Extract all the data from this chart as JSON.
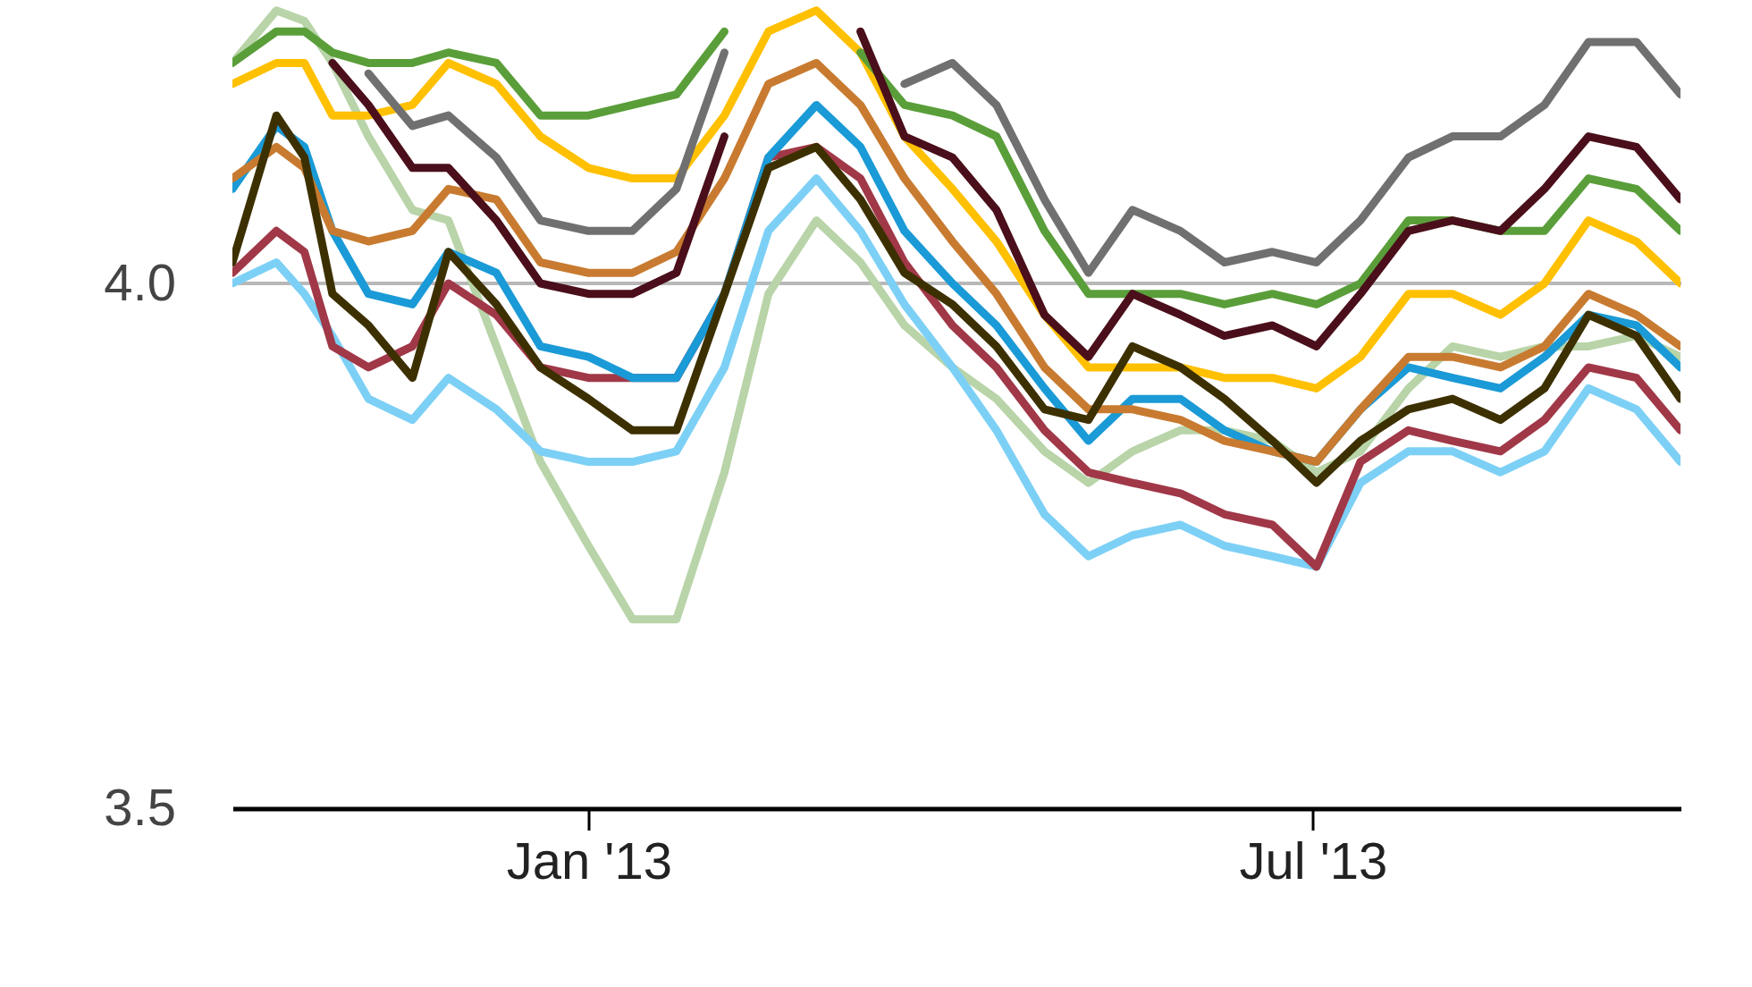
{
  "chart_data": {
    "type": "line",
    "x": [
      "2012-10-04",
      "2012-10-15",
      "2012-10-22",
      "2012-10-29",
      "2012-11-07",
      "2012-11-18",
      "2012-11-27",
      "2012-12-09",
      "2012-12-20",
      "2013-01-01",
      "2013-01-12",
      "2013-01-23",
      "2013-02-04",
      "2013-02-15",
      "2013-02-27",
      "2013-03-10",
      "2013-03-21",
      "2013-04-02",
      "2013-04-13",
      "2013-04-25",
      "2013-05-06",
      "2013-05-17",
      "2013-05-29",
      "2013-06-09",
      "2013-06-21",
      "2013-07-02",
      "2013-07-13",
      "2013-07-25",
      "2013-08-05",
      "2013-08-17",
      "2013-08-28",
      "2013-09-08",
      "2013-09-20",
      "2013-10-01"
    ],
    "series": [
      {
        "color": "#b8d4a8",
        "values": [
          4.21,
          4.26,
          4.25,
          4.21,
          4.14,
          4.07,
          4.06,
          3.94,
          3.83,
          3.75,
          3.68,
          3.68,
          3.82,
          3.99,
          4.06,
          4.02,
          3.96,
          3.92,
          3.89,
          3.84,
          3.81,
          3.84,
          3.86,
          3.86,
          3.85,
          3.82,
          3.84,
          3.9,
          3.94,
          3.93,
          3.94,
          3.94,
          3.95,
          3.93
        ]
      },
      {
        "color": "#7dd0f5",
        "values": [
          4.0,
          4.02,
          3.99,
          3.95,
          3.89,
          3.87,
          3.91,
          3.88,
          3.84,
          3.83,
          3.83,
          3.84,
          3.92,
          4.05,
          4.1,
          4.05,
          3.98,
          3.92,
          3.86,
          3.78,
          3.74,
          3.76,
          3.77,
          3.75,
          3.74,
          3.73,
          3.81,
          3.84,
          3.84,
          3.82,
          3.84,
          3.9,
          3.88,
          3.83
        ]
      },
      {
        "color": "#a03848",
        "values": [
          4.01,
          4.05,
          4.03,
          3.94,
          3.92,
          3.94,
          4.0,
          3.97,
          3.92,
          3.91,
          3.91,
          3.91,
          3.99,
          4.12,
          4.13,
          4.1,
          4.02,
          3.96,
          3.92,
          3.86,
          3.82,
          3.81,
          3.8,
          3.78,
          3.77,
          3.73,
          3.83,
          3.86,
          3.85,
          3.84,
          3.87,
          3.92,
          3.91,
          3.86
        ]
      },
      {
        "color": "#1a9ad6",
        "values": [
          4.09,
          4.15,
          4.13,
          4.05,
          3.99,
          3.98,
          4.03,
          4.01,
          3.94,
          3.93,
          3.91,
          3.91,
          3.99,
          4.12,
          4.17,
          4.13,
          4.05,
          4.0,
          3.96,
          3.9,
          3.85,
          3.89,
          3.89,
          3.86,
          3.84,
          3.83,
          3.88,
          3.92,
          3.91,
          3.9,
          3.93,
          3.97,
          3.96,
          3.92
        ]
      },
      {
        "color": "#c87b30",
        "values": [
          4.1,
          4.13,
          4.11,
          4.05,
          4.04,
          4.05,
          4.09,
          4.08,
          4.02,
          4.01,
          4.01,
          4.03,
          4.1,
          4.19,
          4.21,
          4.17,
          4.1,
          4.04,
          3.99,
          3.92,
          3.88,
          3.88,
          3.87,
          3.85,
          3.84,
          3.83,
          3.88,
          3.93,
          3.93,
          3.92,
          3.94,
          3.99,
          3.97,
          3.94
        ]
      },
      {
        "color": "#ffc000",
        "values": [
          4.19,
          4.21,
          4.21,
          4.16,
          4.16,
          4.17,
          4.21,
          4.19,
          4.14,
          4.11,
          4.1,
          4.1,
          4.16,
          4.24,
          4.26,
          4.22,
          4.14,
          4.09,
          4.04,
          3.97,
          3.92,
          3.92,
          3.92,
          3.91,
          3.91,
          3.9,
          3.93,
          3.99,
          3.99,
          3.97,
          4.0,
          4.06,
          4.04,
          4.0
        ]
      },
      {
        "color": "#5a9e3a",
        "values": [
          4.21,
          4.24,
          4.24,
          4.22,
          4.21,
          4.21,
          4.22,
          4.21,
          4.16,
          4.16,
          4.17,
          4.18,
          4.24,
          null,
          null,
          4.22,
          4.17,
          4.16,
          4.14,
          4.05,
          3.99,
          3.99,
          3.99,
          3.98,
          3.99,
          3.98,
          4.0,
          4.06,
          4.06,
          4.05,
          4.05,
          4.1,
          4.09,
          4.05
        ]
      },
      {
        "color": "#707070",
        "values": [
          null,
          null,
          null,
          null,
          4.2,
          4.15,
          4.16,
          4.12,
          4.06,
          4.05,
          4.05,
          4.09,
          4.22,
          null,
          null,
          null,
          4.19,
          4.21,
          4.17,
          4.08,
          4.01,
          4.07,
          4.05,
          4.02,
          4.03,
          4.02,
          4.06,
          4.12,
          4.14,
          4.14,
          4.17,
          4.23,
          4.23,
          4.18
        ]
      },
      {
        "color": "#4a0f1a",
        "values": [
          null,
          null,
          null,
          4.21,
          4.17,
          4.11,
          4.11,
          4.06,
          4.0,
          3.99,
          3.99,
          4.01,
          4.14,
          null,
          null,
          4.24,
          4.14,
          4.12,
          4.07,
          3.97,
          3.93,
          3.99,
          3.97,
          3.95,
          3.96,
          3.94,
          3.99,
          4.05,
          4.06,
          4.05,
          4.09,
          4.14,
          4.13,
          4.08
        ]
      },
      {
        "color": "#3d3000",
        "values": [
          4.02,
          4.16,
          4.12,
          3.99,
          3.96,
          3.91,
          4.03,
          3.98,
          3.92,
          3.89,
          3.86,
          3.86,
          3.99,
          4.11,
          4.13,
          4.08,
          4.01,
          3.98,
          3.94,
          3.88,
          3.87,
          3.94,
          3.92,
          3.89,
          3.85,
          3.81,
          3.85,
          3.88,
          3.89,
          3.87,
          3.9,
          3.97,
          3.95,
          3.89
        ]
      }
    ],
    "xlim": [
      "2012-10-04",
      "2013-10-01"
    ],
    "xticks": [
      {
        "value": "2013-01-01",
        "label": "Jan '13"
      },
      {
        "value": "2013-07-01",
        "label": "Jul '13"
      }
    ],
    "ylim": [
      3.5,
      4.27
    ],
    "yticks": [
      3.5,
      {
        "value": 4,
        "label": "4.0"
      }
    ],
    "grid": "y",
    "line_style": "solid",
    "marker": "none"
  }
}
